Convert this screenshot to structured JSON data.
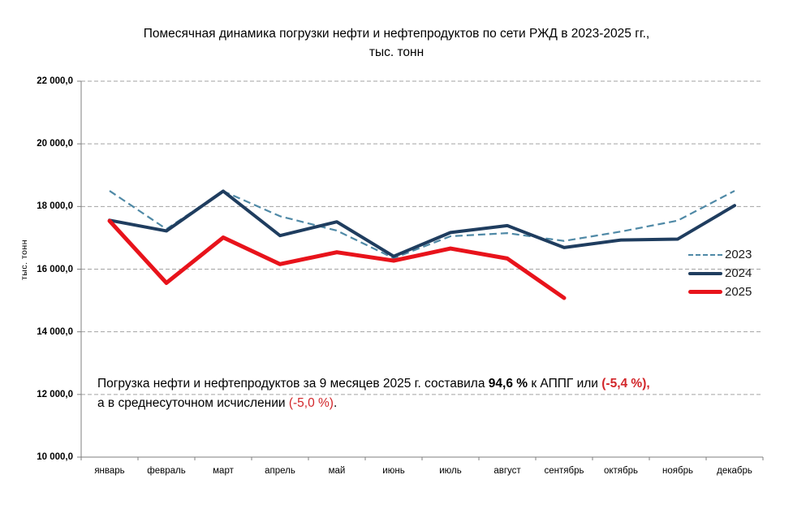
{
  "chart_data": {
    "type": "line",
    "title_line1": "Помесячная динамика погрузки нефти и нефтепродуктов по сети РЖД в 2023-2025 гг.,",
    "title_line2": "тыс. тонн",
    "ylabel": "тыс. тонн",
    "ylim": [
      10000,
      22000
    ],
    "grid": "horizontal-dashed",
    "legend_position": "right-middle",
    "categories": [
      "январь",
      "февраль",
      "март",
      "апрель",
      "май",
      "июнь",
      "июль",
      "август",
      "сентябрь",
      "октябрь",
      "ноябрь",
      "декабрь"
    ],
    "y_ticks": [
      {
        "value": 22000,
        "label": "22 000,0"
      },
      {
        "value": 20000,
        "label": "20 000,0"
      },
      {
        "value": 18000,
        "label": "18 000,0"
      },
      {
        "value": 16000,
        "label": "16 000,0"
      },
      {
        "value": 14000,
        "label": "14 000,0"
      },
      {
        "value": 12000,
        "label": "12 000,0"
      },
      {
        "value": 10000,
        "label": "10 000,0"
      }
    ],
    "series": [
      {
        "name": "2023",
        "style": "dashed",
        "color": "#4f89a6",
        "width": 2.2,
        "values": [
          18500,
          17280,
          18490,
          17690,
          17230,
          16350,
          17050,
          17150,
          16900,
          17200,
          17550,
          18500
        ]
      },
      {
        "name": "2024",
        "style": "solid",
        "color": "#1f3d5f",
        "width": 4,
        "values": [
          17560,
          17220,
          18490,
          17070,
          17510,
          16410,
          17170,
          17390,
          16690,
          16930,
          16960,
          18030
        ]
      },
      {
        "name": "2025",
        "style": "solid",
        "color": "#e8131b",
        "width": 5,
        "values": [
          17540,
          15560,
          17010,
          16160,
          16540,
          16270,
          16660,
          16340,
          15080,
          null,
          null,
          null
        ]
      }
    ],
    "colors": {
      "grid": "#a3a3a3",
      "axis": "#7f7f7f",
      "text": "#000000",
      "accent_red": "#d2262a"
    }
  },
  "annotation": {
    "lines": [
      [
        {
          "text": "Погрузка нефти и нефтепродуктов за 9 месяцев 2025 г. составила ",
          "bold": false,
          "color": "#000000"
        },
        {
          "text": "94,6 %",
          "bold": true,
          "color": "#000000"
        },
        {
          "text": " к АППГ или ",
          "bold": false,
          "color": "#000000"
        },
        {
          "text": "(-5,4 %),",
          "bold": true,
          "color": "#d2262a"
        }
      ],
      [
        {
          "text": "а в среднесуточном исчислении ",
          "bold": false,
          "color": "#000000"
        },
        {
          "text": "(-5,0 %)",
          "bold": false,
          "color": "#d2262a"
        },
        {
          "text": ".",
          "bold": false,
          "color": "#000000"
        }
      ]
    ]
  }
}
